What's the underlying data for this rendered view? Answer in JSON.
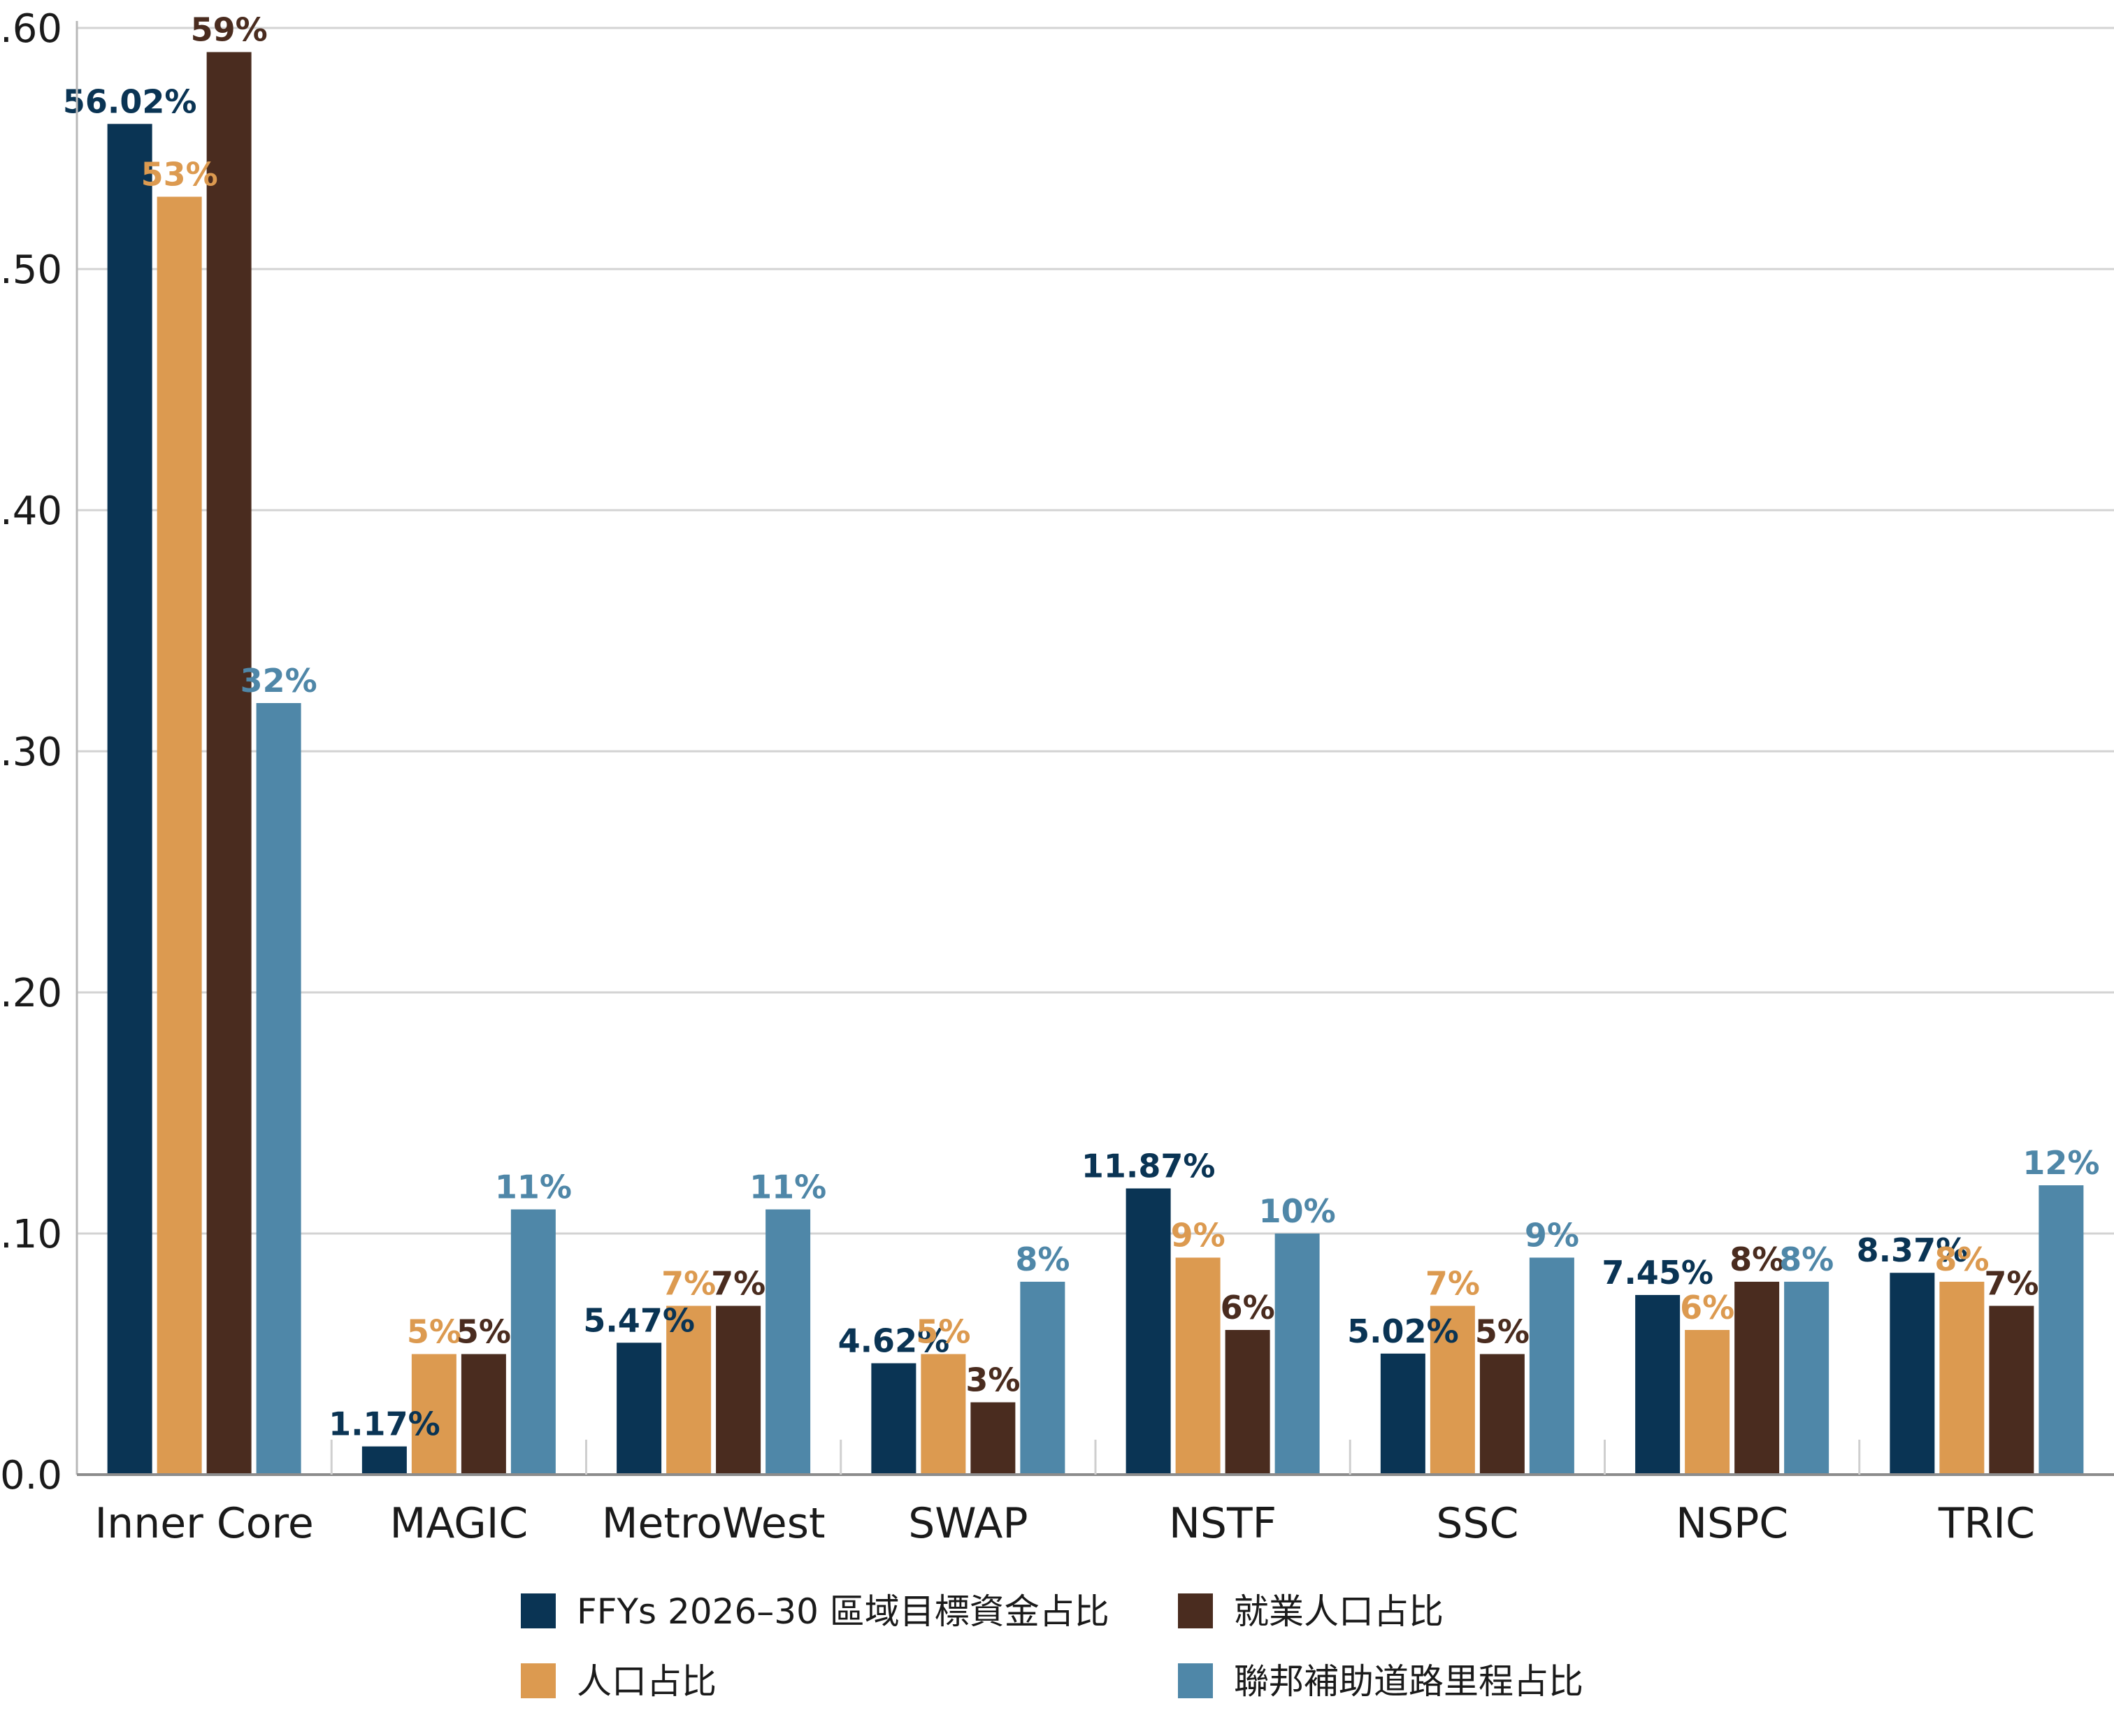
{
  "chart_data": {
    "type": "bar",
    "categories": [
      "Inner Core",
      "MAGIC",
      "MetroWest",
      "SWAP",
      "NSTF",
      "SSC",
      "NSPC",
      "TRIC"
    ],
    "y_ticks": [
      ".60",
      ".50",
      ".40",
      ".30",
      ".20",
      ".10",
      "0.0"
    ],
    "ylim": [
      0,
      0.6
    ],
    "grid": true,
    "legend_position": "bottom",
    "series": [
      {
        "name": "FFYs 2026–30 區域目標資金占比",
        "color": "#0a3454",
        "values": [
          0.5602,
          0.0117,
          0.0547,
          0.0462,
          0.1187,
          0.0502,
          0.0745,
          0.0837
        ],
        "labels": [
          "56.02%",
          "1.17%",
          "5.47%",
          "4.62%",
          "11.87%",
          "5.02%",
          "7.45%",
          "8.37%"
        ]
      },
      {
        "name": "人口占比",
        "color": "#dc9a50",
        "values": [
          0.53,
          0.05,
          0.07,
          0.05,
          0.09,
          0.07,
          0.06,
          0.08
        ],
        "labels": [
          "53%",
          "5%",
          "7%",
          "5%",
          "9%",
          "7%",
          "6%",
          "8%"
        ]
      },
      {
        "name": "就業人口占比",
        "color": "#4a2c1f",
        "values": [
          0.59,
          0.05,
          0.07,
          0.03,
          0.06,
          0.05,
          0.08,
          0.07
        ],
        "labels": [
          "59%",
          "5%",
          "7%",
          "3%",
          "6%",
          "5%",
          "8%",
          "7%"
        ]
      },
      {
        "name": "聯邦補助道路里程占比",
        "color": "#4f87a8",
        "values": [
          0.32,
          0.11,
          0.11,
          0.08,
          0.1,
          0.09,
          0.08,
          0.12
        ],
        "labels": [
          "32%",
          "11%",
          "11%",
          "8%",
          "10%",
          "9%",
          "8%",
          "12%"
        ]
      }
    ]
  }
}
